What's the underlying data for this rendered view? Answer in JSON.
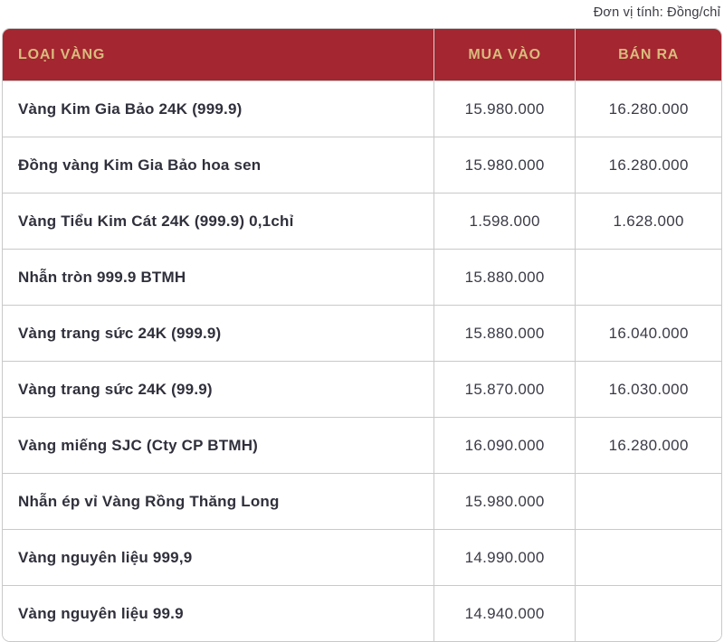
{
  "unit_note": "Đơn vị tính: Đồng/chỉ",
  "colors": {
    "header_bg": "#a32630",
    "header_text": "#d8bc7d",
    "body_text": "#30303c",
    "border": "#c9c9c9"
  },
  "table": {
    "headers": {
      "name": "LOẠI VÀNG",
      "buy": "MUA VÀO",
      "sell": "BÁN RA"
    },
    "rows": [
      {
        "name": "Vàng Kim Gia Bảo 24K (999.9)",
        "buy": "15.980.000",
        "sell": "16.280.000"
      },
      {
        "name": "Đồng vàng Kim Gia Bảo hoa sen",
        "buy": "15.980.000",
        "sell": "16.280.000"
      },
      {
        "name": "Vàng Tiểu Kim Cát 24K (999.9) 0,1chỉ",
        "buy": "1.598.000",
        "sell": "1.628.000"
      },
      {
        "name": "Nhẫn tròn 999.9 BTMH",
        "buy": "15.880.000",
        "sell": ""
      },
      {
        "name": "Vàng trang sức 24K (999.9)",
        "buy": "15.880.000",
        "sell": "16.040.000"
      },
      {
        "name": "Vàng trang sức 24K (99.9)",
        "buy": "15.870.000",
        "sell": "16.030.000"
      },
      {
        "name": "Vàng miếng SJC (Cty CP BTMH)",
        "buy": "16.090.000",
        "sell": "16.280.000"
      },
      {
        "name": "Nhẫn ép vỉ Vàng Rồng Thăng Long",
        "buy": "15.980.000",
        "sell": ""
      },
      {
        "name": "Vàng nguyên liệu 999,9",
        "buy": "14.990.000",
        "sell": ""
      },
      {
        "name": "Vàng nguyên liệu 99.9",
        "buy": "14.940.000",
        "sell": ""
      }
    ]
  },
  "chart_data": {
    "type": "table",
    "title": "",
    "unit": "Đồng/chỉ",
    "columns": [
      "LOẠI VÀNG",
      "MUA VÀO",
      "BÁN RA"
    ],
    "rows": [
      [
        "Vàng Kim Gia Bảo 24K (999.9)",
        15980000,
        16280000
      ],
      [
        "Đồng vàng Kim Gia Bảo hoa sen",
        15980000,
        16280000
      ],
      [
        "Vàng Tiểu Kim Cát 24K (999.9) 0,1chỉ",
        1598000,
        1628000
      ],
      [
        "Nhẫn tròn 999.9 BTMH",
        15880000,
        null
      ],
      [
        "Vàng trang sức 24K (999.9)",
        15880000,
        16040000
      ],
      [
        "Vàng trang sức 24K (99.9)",
        15870000,
        16030000
      ],
      [
        "Vàng miếng SJC (Cty CP BTMH)",
        16090000,
        16280000
      ],
      [
        "Nhẫn ép vỉ Vàng Rồng Thăng Long",
        15980000,
        null
      ],
      [
        "Vàng nguyên liệu 999,9",
        14990000,
        null
      ],
      [
        "Vàng nguyên liệu 99.9",
        14940000,
        null
      ]
    ]
  }
}
